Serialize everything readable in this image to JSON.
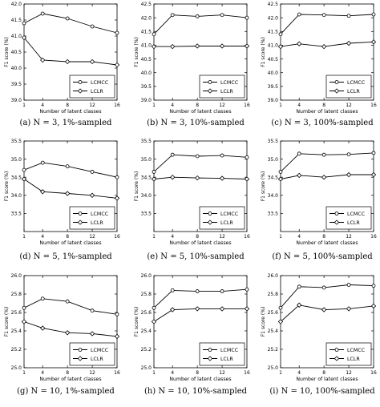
{
  "chart_data": [
    {
      "type": "line",
      "caption": "(a) N = 3, 1%-sampled",
      "xlabel": "Number of latent classes",
      "ylabel": "F1 score (%)",
      "x": [
        1,
        4,
        8,
        12,
        16
      ],
      "xticks": [
        "1",
        "4",
        "8",
        "12",
        "16"
      ],
      "ylim": [
        39.0,
        42.0
      ],
      "yticks": [
        "39.0",
        "39.5",
        "40.0",
        "40.5",
        "41.0",
        "41.5",
        "42.0"
      ],
      "legend_placement": "lower-right",
      "series": [
        {
          "name": "LCMCC",
          "values": [
            41.4,
            41.7,
            41.55,
            41.3,
            41.1
          ]
        },
        {
          "name": "LCLR",
          "values": [
            40.95,
            40.25,
            40.2,
            40.2,
            40.1
          ]
        }
      ]
    },
    {
      "type": "line",
      "caption": "(b) N = 3, 10%-sampled",
      "xlabel": "Number of latent classes",
      "ylabel": "F1 score (%)",
      "x": [
        1,
        4,
        8,
        12,
        16
      ],
      "xticks": [
        "1",
        "4",
        "8",
        "12",
        "16"
      ],
      "ylim": [
        39.0,
        42.5
      ],
      "yticks": [
        "39.0",
        "39.5",
        "40.0",
        "40.5",
        "41.0",
        "41.5",
        "42.0",
        "42.5"
      ],
      "legend_placement": "lower-right",
      "series": [
        {
          "name": "LCMCC",
          "values": [
            41.4,
            42.1,
            42.05,
            42.1,
            42.0
          ]
        },
        {
          "name": "LCLR",
          "values": [
            40.95,
            40.95,
            40.97,
            40.97,
            40.97
          ]
        }
      ]
    },
    {
      "type": "line",
      "caption": "(c) N = 3, 100%-sampled",
      "xlabel": "Number of latent classes",
      "ylabel": "F1 score (%)",
      "x": [
        1,
        4,
        8,
        12,
        16
      ],
      "xticks": [
        "1",
        "4",
        "8",
        "12",
        "16"
      ],
      "ylim": [
        39.0,
        42.5
      ],
      "yticks": [
        "39.0",
        "39.5",
        "40.0",
        "40.5",
        "41.0",
        "41.5",
        "42.0",
        "42.5"
      ],
      "legend_placement": "lower-right",
      "series": [
        {
          "name": "LCMCC",
          "values": [
            41.4,
            42.12,
            42.1,
            42.07,
            42.12
          ]
        },
        {
          "name": "LCLR",
          "values": [
            40.95,
            41.05,
            40.95,
            41.07,
            41.12
          ]
        }
      ]
    },
    {
      "type": "line",
      "caption": "(d) N = 5, 1%-sampled",
      "xlabel": "Number of latent classes",
      "ylabel": "F1 score (%)",
      "x": [
        1,
        4,
        8,
        12,
        16
      ],
      "xticks": [
        "1",
        "4",
        "8",
        "12",
        "16"
      ],
      "ylim": [
        33.0,
        35.5
      ],
      "yticks": [
        "33.5",
        "34.0",
        "34.5",
        "35.0",
        "35.5"
      ],
      "legend_placement": "lower-right",
      "series": [
        {
          "name": "LCMCC",
          "values": [
            34.7,
            34.9,
            34.8,
            34.65,
            34.5
          ]
        },
        {
          "name": "LCLR",
          "values": [
            34.45,
            34.1,
            34.05,
            34.0,
            33.92
          ]
        }
      ]
    },
    {
      "type": "line",
      "caption": "(e) N = 5, 10%-sampled",
      "xlabel": "Number of latent classes",
      "ylabel": "F1 score (%)",
      "x": [
        1,
        4,
        8,
        12,
        16
      ],
      "xticks": [
        "1",
        "4",
        "8",
        "12",
        "16"
      ],
      "ylim": [
        33.0,
        35.5
      ],
      "yticks": [
        "33.5",
        "34.0",
        "34.5",
        "35.0",
        "35.5"
      ],
      "legend_placement": "lower-right",
      "series": [
        {
          "name": "LCMCC",
          "values": [
            34.65,
            35.12,
            35.08,
            35.1,
            35.05
          ]
        },
        {
          "name": "LCLR",
          "values": [
            34.45,
            34.5,
            34.48,
            34.47,
            34.45
          ]
        }
      ]
    },
    {
      "type": "line",
      "caption": "(f) N = 5, 100%-sampled",
      "xlabel": "Number of latent classes",
      "ylabel": "F1 score (%)",
      "x": [
        1,
        4,
        8,
        12,
        16
      ],
      "xticks": [
        "1",
        "4",
        "8",
        "12",
        "16"
      ],
      "ylim": [
        33.0,
        35.5
      ],
      "yticks": [
        "33.5",
        "34.0",
        "34.5",
        "35.0",
        "35.5"
      ],
      "legend_placement": "lower-right",
      "series": [
        {
          "name": "LCMCC",
          "values": [
            34.65,
            35.15,
            35.12,
            35.13,
            35.17
          ]
        },
        {
          "name": "LCLR",
          "values": [
            34.45,
            34.55,
            34.5,
            34.57,
            34.57
          ]
        }
      ]
    },
    {
      "type": "line",
      "caption": "(g) N = 10, 1%-sampled",
      "xlabel": "Number of latent classes",
      "ylabel": "F1 score (%)",
      "x": [
        1,
        4,
        8,
        12,
        16
      ],
      "xticks": [
        "1",
        "4",
        "8",
        "12",
        "16"
      ],
      "ylim": [
        25.0,
        26.0
      ],
      "yticks": [
        "25.0",
        "25.2",
        "25.4",
        "25.6",
        "25.8",
        "26.0"
      ],
      "legend_placement": "lower-right",
      "series": [
        {
          "name": "LCMCC",
          "values": [
            25.65,
            25.75,
            25.72,
            25.62,
            25.58
          ]
        },
        {
          "name": "LCLR",
          "values": [
            25.5,
            25.43,
            25.38,
            25.37,
            25.34
          ]
        }
      ]
    },
    {
      "type": "line",
      "caption": "(h) N = 10, 10%-sampled",
      "xlabel": "Number of latent classes",
      "ylabel": "F1 score (%)",
      "x": [
        1,
        4,
        8,
        12,
        16
      ],
      "xticks": [
        "1",
        "4",
        "8",
        "12",
        "16"
      ],
      "ylim": [
        25.0,
        26.0
      ],
      "yticks": [
        "25.0",
        "25.2",
        "25.4",
        "25.6",
        "25.8",
        "26.0"
      ],
      "legend_placement": "lower-right",
      "series": [
        {
          "name": "LCMCC",
          "values": [
            25.65,
            25.84,
            25.83,
            25.83,
            25.85
          ]
        },
        {
          "name": "LCLR",
          "values": [
            25.5,
            25.63,
            25.64,
            25.64,
            25.64
          ]
        }
      ]
    },
    {
      "type": "line",
      "caption": "(i) N = 10, 100%-sampled",
      "xlabel": "Number of latent classes",
      "ylabel": "F1 score (%)",
      "x": [
        1,
        4,
        8,
        12,
        16
      ],
      "xticks": [
        "1",
        "4",
        "8",
        "12",
        "16"
      ],
      "ylim": [
        25.0,
        26.0
      ],
      "yticks": [
        "25.0",
        "25.2",
        "25.4",
        "25.6",
        "25.8",
        "26.0"
      ],
      "legend_placement": "lower-right",
      "series": [
        {
          "name": "LCMCC",
          "values": [
            25.65,
            25.88,
            25.87,
            25.9,
            25.89
          ]
        },
        {
          "name": "LCLR",
          "values": [
            25.5,
            25.68,
            25.63,
            25.64,
            25.67
          ]
        }
      ]
    }
  ]
}
